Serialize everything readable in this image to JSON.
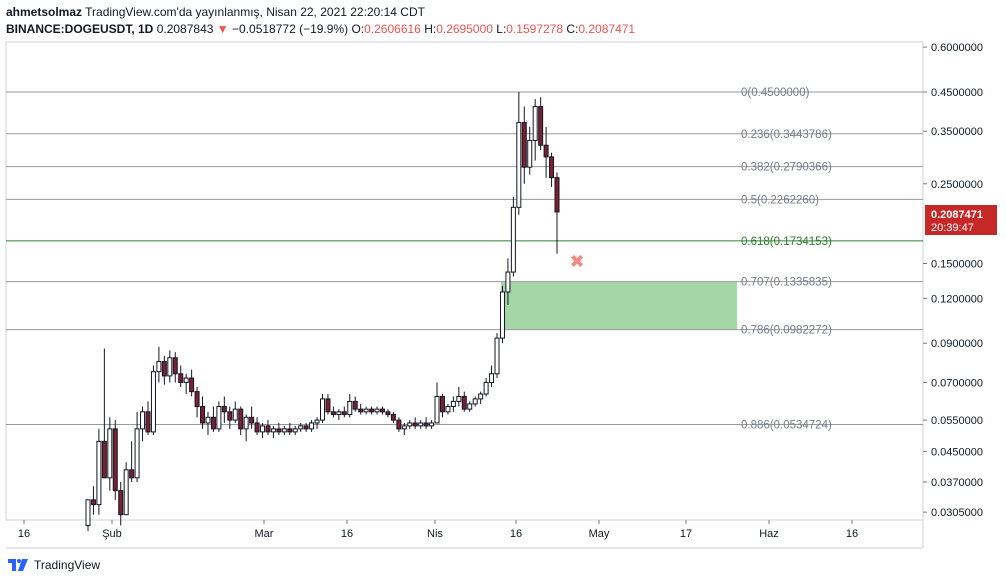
{
  "header": {
    "author": "ahmetsolmaz",
    "published": "TradingView.com'da yayınlanmış, Nisan 22, 2021 22:20:14 CDT",
    "symbol": "BINANCE:DOGEUSDT, 1D",
    "last": "0.2087843",
    "arrow": "▼",
    "change": "−0.0518772 (−19.9%)",
    "o_label": "O:",
    "o_value": "0.2606616",
    "h_label": "H:",
    "h_value": "0.2695000",
    "l_label": "L:",
    "l_value": "0.1597278",
    "c_label": "C:",
    "c_value": "0.2087471"
  },
  "price_tag": {
    "price": "0.2087471",
    "countdown": "20:39:47"
  },
  "footer": {
    "brand": "TradingView"
  },
  "colors": {
    "up": "#26a69a",
    "down": "#ef5350",
    "candle": "#131722",
    "fib_line": "#9a9a9a",
    "fib_618": "#2e7d32",
    "zone": "#a5d6a7",
    "tag": "#c62828"
  },
  "chart_data": {
    "type": "candlestick",
    "scale": "log",
    "ylim": [
      0.029,
      0.62
    ],
    "y_ticks": [
      "0.6000000",
      "0.4500000",
      "0.3500000",
      "0.2500000",
      "0.1500000",
      "0.1200000",
      "0.0900000",
      "0.0700000",
      "0.0550000",
      "0.0450000",
      "0.0370000",
      "0.0305000"
    ],
    "y_tick_values": [
      0.6,
      0.45,
      0.35,
      0.25,
      0.15,
      0.12,
      0.09,
      0.07,
      0.055,
      0.045,
      0.037,
      0.0305
    ],
    "x_ticks": [
      "16",
      "Şub",
      "Mar",
      "16",
      "Nis",
      "16",
      "May",
      "17",
      "Haz",
      "16"
    ],
    "fib_levels": [
      {
        "ratio": "0",
        "value": 0.45,
        "label": "0(0.4500000)"
      },
      {
        "ratio": "0.236",
        "value": 0.3443786,
        "label": "0.236(0.3443786)"
      },
      {
        "ratio": "0.382",
        "value": 0.2790366,
        "label": "0.382(0.2790366)"
      },
      {
        "ratio": "0.5",
        "value": 0.226226,
        "label": "0.5(0.2262260)"
      },
      {
        "ratio": "0.618",
        "value": 0.1734153,
        "label": "0.618(0.1734153)"
      },
      {
        "ratio": "0.707",
        "value": 0.1335835,
        "label": "0.707(0.1335835)"
      },
      {
        "ratio": "0.786",
        "value": 0.0982272,
        "label": "0.786(0.0982272)"
      },
      {
        "ratio": "0.886",
        "value": 0.0534724,
        "label": "0.886(0.0534724)"
      }
    ],
    "zone": {
      "top": 0.1335835,
      "bottom": 0.0982272
    },
    "marker": {
      "label": "✖",
      "value": 0.152
    },
    "candles": [
      [
        0.028,
        0.033,
        0.027,
        0.033
      ],
      [
        0.033,
        0.036,
        0.03,
        0.032
      ],
      [
        0.032,
        0.052,
        0.03,
        0.048
      ],
      [
        0.048,
        0.087,
        0.038,
        0.038
      ],
      [
        0.038,
        0.056,
        0.035,
        0.052
      ],
      [
        0.052,
        0.055,
        0.033,
        0.035
      ],
      [
        0.035,
        0.037,
        0.028,
        0.03
      ],
      [
        0.03,
        0.042,
        0.03,
        0.04
      ],
      [
        0.04,
        0.048,
        0.037,
        0.038
      ],
      [
        0.038,
        0.058,
        0.037,
        0.052
      ],
      [
        0.052,
        0.06,
        0.048,
        0.058
      ],
      [
        0.058,
        0.062,
        0.05,
        0.051
      ],
      [
        0.051,
        0.078,
        0.05,
        0.075
      ],
      [
        0.075,
        0.088,
        0.07,
        0.08
      ],
      [
        0.08,
        0.083,
        0.069,
        0.073
      ],
      [
        0.073,
        0.086,
        0.07,
        0.082
      ],
      [
        0.082,
        0.085,
        0.07,
        0.074
      ],
      [
        0.074,
        0.078,
        0.068,
        0.07
      ],
      [
        0.07,
        0.074,
        0.065,
        0.072
      ],
      [
        0.072,
        0.076,
        0.064,
        0.066
      ],
      [
        0.066,
        0.068,
        0.056,
        0.06
      ],
      [
        0.06,
        0.064,
        0.052,
        0.054
      ],
      [
        0.054,
        0.058,
        0.05,
        0.056
      ],
      [
        0.056,
        0.06,
        0.051,
        0.052
      ],
      [
        0.052,
        0.062,
        0.051,
        0.06
      ],
      [
        0.06,
        0.064,
        0.054,
        0.058
      ],
      [
        0.058,
        0.06,
        0.052,
        0.055
      ],
      [
        0.055,
        0.062,
        0.054,
        0.059
      ],
      [
        0.059,
        0.06,
        0.05,
        0.052
      ],
      [
        0.052,
        0.057,
        0.048,
        0.056
      ],
      [
        0.056,
        0.06,
        0.052,
        0.054
      ],
      [
        0.054,
        0.056,
        0.05,
        0.051
      ],
      [
        0.051,
        0.054,
        0.049,
        0.053
      ],
      [
        0.053,
        0.055,
        0.05,
        0.051
      ],
      [
        0.051,
        0.053,
        0.049,
        0.052
      ],
      [
        0.052,
        0.054,
        0.05,
        0.051
      ],
      [
        0.051,
        0.053,
        0.05,
        0.052
      ],
      [
        0.052,
        0.054,
        0.05,
        0.051
      ],
      [
        0.051,
        0.053,
        0.05,
        0.052
      ],
      [
        0.052,
        0.054,
        0.051,
        0.053
      ],
      [
        0.053,
        0.054,
        0.051,
        0.052
      ],
      [
        0.052,
        0.055,
        0.051,
        0.054
      ],
      [
        0.054,
        0.056,
        0.052,
        0.055
      ],
      [
        0.055,
        0.065,
        0.054,
        0.063
      ],
      [
        0.063,
        0.065,
        0.057,
        0.058
      ],
      [
        0.058,
        0.06,
        0.056,
        0.057
      ],
      [
        0.057,
        0.059,
        0.055,
        0.058
      ],
      [
        0.058,
        0.06,
        0.056,
        0.057
      ],
      [
        0.057,
        0.065,
        0.056,
        0.062
      ],
      [
        0.062,
        0.064,
        0.058,
        0.059
      ],
      [
        0.059,
        0.061,
        0.057,
        0.058
      ],
      [
        0.058,
        0.06,
        0.057,
        0.059
      ],
      [
        0.059,
        0.06,
        0.057,
        0.058
      ],
      [
        0.058,
        0.06,
        0.057,
        0.059
      ],
      [
        0.059,
        0.06,
        0.057,
        0.058
      ],
      [
        0.058,
        0.059,
        0.056,
        0.057
      ],
      [
        0.057,
        0.058,
        0.054,
        0.055
      ],
      [
        0.055,
        0.056,
        0.051,
        0.052
      ],
      [
        0.052,
        0.054,
        0.05,
        0.053
      ],
      [
        0.053,
        0.055,
        0.052,
        0.054
      ],
      [
        0.054,
        0.056,
        0.052,
        0.053
      ],
      [
        0.053,
        0.055,
        0.052,
        0.054
      ],
      [
        0.054,
        0.056,
        0.052,
        0.053
      ],
      [
        0.053,
        0.055,
        0.052,
        0.054
      ],
      [
        0.054,
        0.07,
        0.054,
        0.064
      ],
      [
        0.064,
        0.065,
        0.056,
        0.058
      ],
      [
        0.058,
        0.061,
        0.057,
        0.06
      ],
      [
        0.06,
        0.064,
        0.058,
        0.062
      ],
      [
        0.062,
        0.068,
        0.06,
        0.064
      ],
      [
        0.064,
        0.066,
        0.058,
        0.059
      ],
      [
        0.059,
        0.062,
        0.058,
        0.061
      ],
      [
        0.061,
        0.064,
        0.06,
        0.063
      ],
      [
        0.063,
        0.066,
        0.061,
        0.065
      ],
      [
        0.065,
        0.072,
        0.064,
        0.07
      ],
      [
        0.07,
        0.078,
        0.068,
        0.074
      ],
      [
        0.074,
        0.096,
        0.072,
        0.093
      ],
      [
        0.093,
        0.13,
        0.09,
        0.125
      ],
      [
        0.125,
        0.155,
        0.115,
        0.142
      ],
      [
        0.142,
        0.23,
        0.138,
        0.215
      ],
      [
        0.215,
        0.45,
        0.205,
        0.37
      ],
      [
        0.37,
        0.41,
        0.25,
        0.278
      ],
      [
        0.278,
        0.36,
        0.265,
        0.33
      ],
      [
        0.33,
        0.43,
        0.29,
        0.41
      ],
      [
        0.41,
        0.435,
        0.31,
        0.32
      ],
      [
        0.32,
        0.36,
        0.26,
        0.297
      ],
      [
        0.297,
        0.305,
        0.245,
        0.26
      ],
      [
        0.26,
        0.269,
        0.1597,
        0.2087
      ]
    ]
  }
}
